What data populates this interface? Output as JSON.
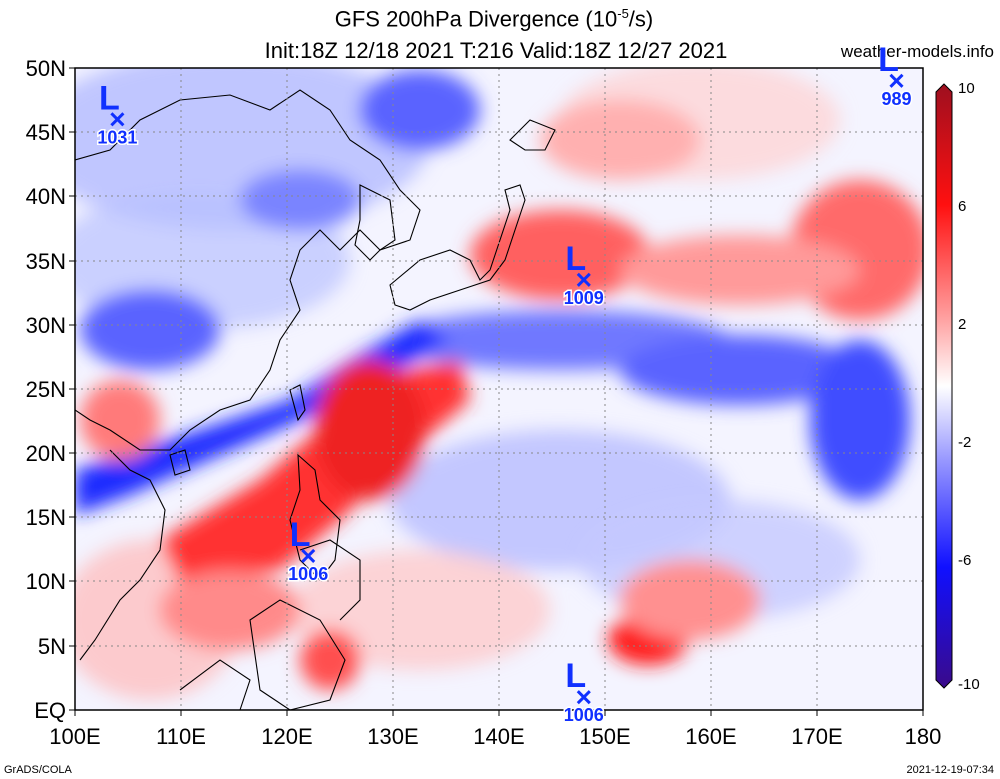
{
  "header": {
    "title_prefix": "GFS 200hPa Divergence (10",
    "title_exp": "-5",
    "title_suffix": "/s)",
    "subtitle": "Init:18Z 12/18 2021 T:216 Valid:18Z 12/27 2021",
    "site": "weather-models.info"
  },
  "footer": {
    "left": "GrADS/COLA",
    "right": "2021-12-19-07:34"
  },
  "axes": {
    "y_ticks": [
      "50N",
      "45N",
      "40N",
      "35N",
      "30N",
      "25N",
      "20N",
      "15N",
      "10N",
      "5N",
      "EQ"
    ],
    "x_ticks": [
      "100E",
      "110E",
      "120E",
      "130E",
      "140E",
      "150E",
      "160E",
      "170E",
      "180"
    ]
  },
  "colorbar": {
    "labels": [
      "10",
      "6",
      "2",
      "-2",
      "-6",
      "-10"
    ],
    "colors": [
      "#b2182b",
      "#d6202a",
      "#ff1010",
      "#ff6a6a",
      "#ffb0b0",
      "#ffe6e6",
      "#ffffff",
      "#e6e6ff",
      "#b0b0ff",
      "#6a6aff",
      "#1010ff",
      "#2010c8",
      "#3a0a96"
    ]
  },
  "lows": [
    {
      "symbol": "L",
      "pressure": "1031",
      "lon": 104,
      "lat": 46
    },
    {
      "symbol": "L",
      "pressure": "989",
      "lon": 177.5,
      "lat": 49
    },
    {
      "symbol": "L",
      "pressure": "1009",
      "lon": 148,
      "lat": 33.5
    },
    {
      "symbol": "L",
      "pressure": "1006",
      "lon": 122,
      "lat": 12
    },
    {
      "symbol": "L",
      "pressure": "1006",
      "lon": 148,
      "lat": 1
    }
  ],
  "field_colors": {
    "blue_strong": "#1a2cff",
    "blue_mid": "#6e7cff",
    "blue_light": "#c4c8ff",
    "red_strong": "#ff2a2a",
    "red_mid": "#ff7a7a",
    "red_light": "#ffcaca"
  }
}
